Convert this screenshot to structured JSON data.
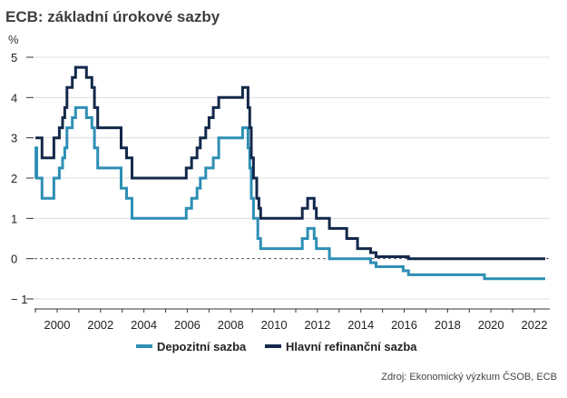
{
  "chart_data": {
    "type": "line",
    "title": "ECB: základní úrokové sazby",
    "unit": "%",
    "source": "Zdroj: Ekonomický výzkum ČSOB, ECB",
    "xlim": [
      1999.0,
      2022.6
    ],
    "ylim": [
      -1.2,
      5.3
    ],
    "x_ticks": [
      {
        "value": 2000,
        "label": "2000"
      },
      {
        "value": 2002,
        "label": "2002"
      },
      {
        "value": 2004,
        "label": "2004"
      },
      {
        "value": 2006,
        "label": "2006"
      },
      {
        "value": 2008,
        "label": "2008"
      },
      {
        "value": 2010,
        "label": "2010"
      },
      {
        "value": 2012,
        "label": "2012"
      },
      {
        "value": 2014,
        "label": "2014"
      },
      {
        "value": 2016,
        "label": "2016"
      },
      {
        "value": 2018,
        "label": "2018"
      },
      {
        "value": 2020,
        "label": "2020"
      },
      {
        "value": 2022,
        "label": "2022"
      }
    ],
    "y_ticks": [
      {
        "value": 5,
        "label": "5"
      },
      {
        "value": 4,
        "label": "4"
      },
      {
        "value": 3,
        "label": "3"
      },
      {
        "value": 2,
        "label": "2"
      },
      {
        "value": 1,
        "label": "1"
      },
      {
        "value": 0,
        "label": "0"
      },
      {
        "value": -1,
        "label": "− 1"
      }
    ],
    "grid": true,
    "zero_line": "dashed",
    "legend_position": "bottom",
    "series": [
      {
        "name": "Depozitní sazba",
        "color": "#2e8fb5",
        "step_points": [
          [
            1999.0,
            2.0
          ],
          [
            1999.02,
            2.75
          ],
          [
            1999.06,
            2.0
          ],
          [
            1999.3,
            1.5
          ],
          [
            1999.85,
            2.0
          ],
          [
            2000.1,
            2.25
          ],
          [
            2000.25,
            2.5
          ],
          [
            2000.35,
            2.75
          ],
          [
            2000.45,
            3.25
          ],
          [
            2000.7,
            3.5
          ],
          [
            2000.85,
            3.75
          ],
          [
            2001.35,
            3.5
          ],
          [
            2001.6,
            3.25
          ],
          [
            2001.72,
            2.75
          ],
          [
            2001.87,
            2.25
          ],
          [
            2002.95,
            1.75
          ],
          [
            2003.2,
            1.5
          ],
          [
            2003.45,
            1.0
          ],
          [
            2005.95,
            1.25
          ],
          [
            2006.2,
            1.5
          ],
          [
            2006.45,
            1.75
          ],
          [
            2006.6,
            2.0
          ],
          [
            2006.85,
            2.25
          ],
          [
            2007.2,
            2.5
          ],
          [
            2007.45,
            3.0
          ],
          [
            2008.55,
            3.25
          ],
          [
            2008.8,
            2.75
          ],
          [
            2008.88,
            2.25
          ],
          [
            2008.95,
            1.5
          ],
          [
            2009.05,
            1.0
          ],
          [
            2009.25,
            0.5
          ],
          [
            2009.38,
            0.25
          ],
          [
            2011.3,
            0.5
          ],
          [
            2011.55,
            0.75
          ],
          [
            2011.85,
            0.5
          ],
          [
            2011.95,
            0.25
          ],
          [
            2012.55,
            0.0
          ],
          [
            2014.45,
            -0.1
          ],
          [
            2014.7,
            -0.2
          ],
          [
            2015.95,
            -0.3
          ],
          [
            2016.2,
            -0.4
          ],
          [
            2019.7,
            -0.5
          ],
          [
            2022.5,
            -0.5
          ]
        ]
      },
      {
        "name": "Hlavní refinanční sazba",
        "color": "#13294b",
        "step_points": [
          [
            1999.0,
            3.0
          ],
          [
            1999.3,
            2.5
          ],
          [
            1999.85,
            3.0
          ],
          [
            2000.1,
            3.25
          ],
          [
            2000.25,
            3.5
          ],
          [
            2000.35,
            3.75
          ],
          [
            2000.45,
            4.25
          ],
          [
            2000.7,
            4.5
          ],
          [
            2000.85,
            4.75
          ],
          [
            2001.35,
            4.5
          ],
          [
            2001.6,
            4.25
          ],
          [
            2001.72,
            3.75
          ],
          [
            2001.87,
            3.25
          ],
          [
            2002.95,
            2.75
          ],
          [
            2003.2,
            2.5
          ],
          [
            2003.45,
            2.0
          ],
          [
            2005.95,
            2.25
          ],
          [
            2006.2,
            2.5
          ],
          [
            2006.45,
            2.75
          ],
          [
            2006.6,
            3.0
          ],
          [
            2006.85,
            3.25
          ],
          [
            2007.0,
            3.5
          ],
          [
            2007.2,
            3.75
          ],
          [
            2007.45,
            4.0
          ],
          [
            2008.55,
            4.25
          ],
          [
            2008.8,
            3.75
          ],
          [
            2008.88,
            3.25
          ],
          [
            2008.95,
            2.5
          ],
          [
            2009.05,
            2.0
          ],
          [
            2009.2,
            1.5
          ],
          [
            2009.3,
            1.25
          ],
          [
            2009.38,
            1.0
          ],
          [
            2011.3,
            1.25
          ],
          [
            2011.55,
            1.5
          ],
          [
            2011.85,
            1.25
          ],
          [
            2011.95,
            1.0
          ],
          [
            2012.55,
            0.75
          ],
          [
            2013.35,
            0.5
          ],
          [
            2013.85,
            0.25
          ],
          [
            2014.45,
            0.15
          ],
          [
            2014.7,
            0.05
          ],
          [
            2016.2,
            0.0
          ],
          [
            2022.5,
            0.0
          ]
        ]
      }
    ]
  }
}
